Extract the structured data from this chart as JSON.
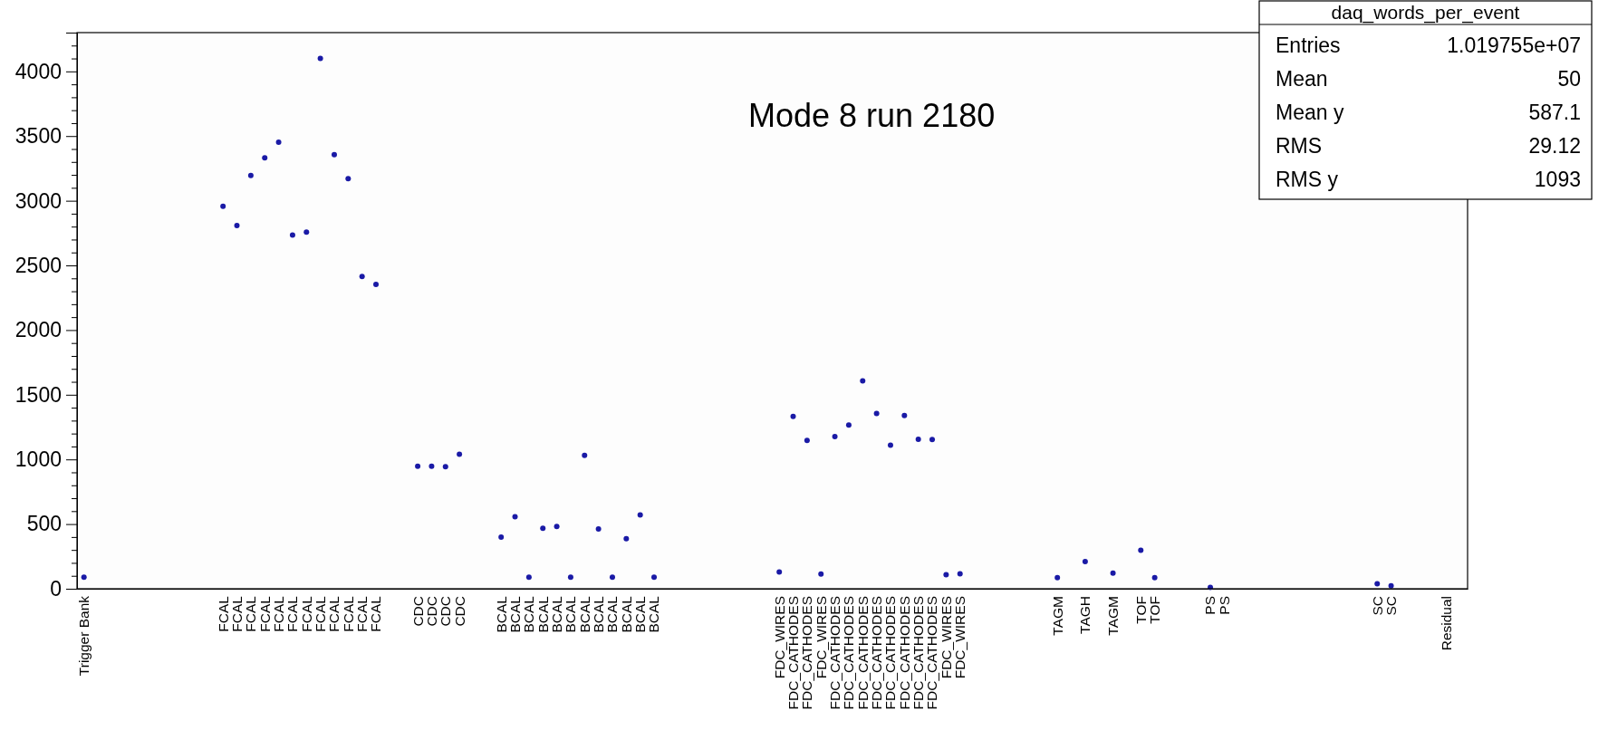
{
  "chart_data": {
    "type": "scatter",
    "title": "daq_words_per_event",
    "subtitle": "Mode 8 run 2180",
    "annotations": [
      "Entries 1.019755e+07",
      "Mean 50",
      "Mean y 587.1",
      "RMS 29.12",
      "RMS y 1093"
    ],
    "marker": "circle",
    "categories": [
      "Trigger Bank",
      null,
      null,
      null,
      null,
      null,
      null,
      null,
      null,
      null,
      "FCAL",
      "FCAL",
      "FCAL",
      "FCAL",
      "FCAL",
      "FCAL",
      "FCAL",
      "FCAL",
      "FCAL",
      "FCAL",
      "FCAL",
      "FCAL",
      null,
      null,
      "CDC",
      "CDC",
      "CDC",
      "CDC",
      null,
      null,
      "BCAL",
      "BCAL",
      "BCAL",
      "BCAL",
      "BCAL",
      "BCAL",
      "BCAL",
      "BCAL",
      "BCAL",
      "BCAL",
      "BCAL",
      "BCAL",
      null,
      null,
      null,
      null,
      null,
      null,
      null,
      null,
      "FDC_WIRES",
      "FDC_CATHODES",
      "FDC_CATHODES",
      "FDC_WIRES",
      "FDC_CATHODES",
      "FDC_CATHODES",
      "FDC_CATHODES",
      "FDC_CATHODES",
      "FDC_CATHODES",
      "FDC_CATHODES",
      "FDC_CATHODES",
      "FDC_CATHODES",
      "FDC_WIRES",
      "FDC_WIRES",
      null,
      null,
      null,
      null,
      null,
      null,
      "TAGM",
      null,
      "TAGH",
      null,
      "TAGM",
      null,
      "TOF",
      "TOF",
      null,
      null,
      null,
      "PS",
      "PS",
      null,
      null,
      null,
      null,
      null,
      null,
      null,
      null,
      null,
      null,
      "SC",
      "SC",
      null,
      null,
      null,
      "Residual",
      null
    ],
    "series": [
      {
        "color": "#1a1aa6",
        "values": [
          90,
          null,
          null,
          null,
          null,
          null,
          null,
          null,
          null,
          null,
          2957,
          2809,
          3196,
          3332,
          3452,
          2734,
          2757,
          4100,
          3357,
          3171,
          2414,
          2353,
          null,
          null,
          948,
          948,
          943,
          1040,
          null,
          null,
          400,
          556,
          89,
          467,
          481,
          89,
          1032,
          462,
          89,
          387,
          570,
          89,
          null,
          null,
          null,
          null,
          null,
          null,
          null,
          null,
          129,
          1332,
          1147,
          113,
          1177,
          1265,
          1608,
          1355,
          1110,
          1339,
          1155,
          1153,
          109,
          116,
          null,
          null,
          null,
          null,
          null,
          null,
          85,
          null,
          210,
          null,
          120,
          null,
          298,
          85,
          null,
          null,
          null,
          10,
          null,
          null,
          null,
          null,
          null,
          null,
          null,
          null,
          null,
          null,
          null,
          38,
          23,
          null,
          null,
          null,
          null,
          null
        ]
      }
    ],
    "ylim": [
      0,
      4300
    ],
    "yticks": [
      0,
      {
        "value": 100,
        "label": null
      },
      {
        "value": 200,
        "label": null
      },
      {
        "value": 300,
        "label": null
      },
      {
        "value": 400,
        "label": null
      },
      500,
      {
        "value": 600,
        "label": null
      },
      {
        "value": 700,
        "label": null
      },
      {
        "value": 800,
        "label": null
      },
      {
        "value": 900,
        "label": null
      },
      1000,
      {
        "value": 1100,
        "label": null
      },
      {
        "value": 1200,
        "label": null
      },
      {
        "value": 1300,
        "label": null
      },
      {
        "value": 1400,
        "label": null
      },
      1500,
      {
        "value": 1600,
        "label": null
      },
      {
        "value": 1700,
        "label": null
      },
      {
        "value": 1800,
        "label": null
      },
      {
        "value": 1900,
        "label": null
      },
      2000,
      {
        "value": 2100,
        "label": null
      },
      {
        "value": 2200,
        "label": null
      },
      {
        "value": 2300,
        "label": null
      },
      {
        "value": 2400,
        "label": null
      },
      2500,
      {
        "value": 2600,
        "label": null
      },
      {
        "value": 2700,
        "label": null
      },
      {
        "value": 2800,
        "label": null
      },
      {
        "value": 2900,
        "label": null
      },
      3000,
      {
        "value": 3100,
        "label": null
      },
      {
        "value": 3200,
        "label": null
      },
      {
        "value": 3300,
        "label": null
      },
      {
        "value": 3400,
        "label": null
      },
      3500,
      {
        "value": 3600,
        "label": null
      },
      {
        "value": 3700,
        "label": null
      },
      {
        "value": 3800,
        "label": null
      },
      {
        "value": 3900,
        "label": null
      },
      4000,
      {
        "value": 4100,
        "label": null
      },
      {
        "value": 4200,
        "label": null
      }
    ]
  }
}
